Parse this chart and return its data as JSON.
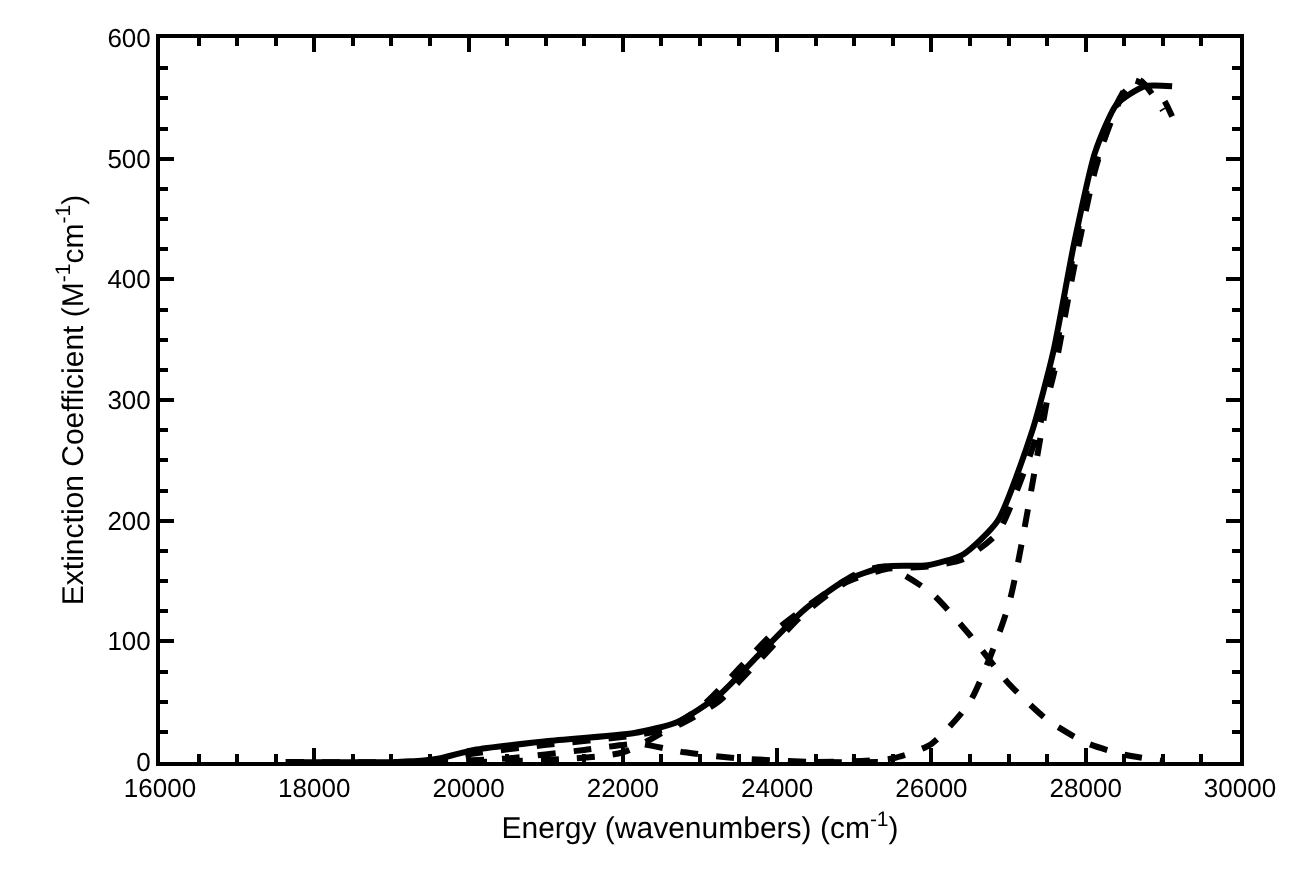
{
  "chart_data": {
    "type": "line",
    "xlabel": "Energy (wavenumbers) (cm$^{-1}$)",
    "ylabel": "Extinction Coefficient (M$^{-1}$cm$^{-1}$)",
    "xlim": [
      16000,
      30000
    ],
    "xticks": [
      16000,
      18000,
      20000,
      22000,
      24000,
      26000,
      28000,
      30000
    ],
    "ylim": [
      0,
      600
    ],
    "yticks": [
      0,
      100,
      200,
      300,
      400,
      500,
      600
    ],
    "grid": false,
    "marker": "none",
    "series": [
      {
        "color": "#000000",
        "line_style": "solid",
        "x": [
          17630,
          19080,
          19620,
          20070,
          20980,
          22150,
          22700,
          23240,
          23780,
          24330,
          24870,
          25410,
          25950,
          26410,
          26860,
          27310,
          27580,
          27850,
          28120,
          28400,
          28760,
          29120
        ],
        "values": [
          0,
          0,
          3,
          10,
          17,
          24,
          33,
          55,
          90,
          125,
          150,
          162,
          163,
          172,
          200,
          275,
          340,
          430,
          505,
          545,
          560,
          560
        ]
      },
      {
        "color": "#000000",
        "line_style": "dashed",
        "x": [
          17630,
          19080,
          19620,
          20070,
          20980,
          22150,
          22700,
          23240,
          23780,
          24330,
          24870,
          25410,
          25950,
          26410,
          26860,
          27310,
          27580,
          27850,
          28120,
          28400,
          28600,
          28800,
          29000,
          29120
        ],
        "values": [
          0,
          0,
          2,
          7,
          14,
          22,
          30,
          50,
          85,
          122,
          148,
          160,
          162,
          168,
          190,
          260,
          320,
          410,
          490,
          545,
          565,
          560,
          550,
          535
        ]
      },
      {
        "color": "#000000",
        "line_style": "dashed",
        "x": [
          19500,
          20500,
          21500,
          22200,
          22800,
          23500,
          24500,
          25500
        ],
        "values": [
          0,
          3,
          10,
          15,
          8,
          3,
          0,
          0
        ]
      },
      {
        "color": "#000000",
        "line_style": "dashed",
        "x": [
          20000,
          22000,
          23000,
          24000,
          25000,
          25400,
          26000,
          26500,
          27000,
          27500,
          28000,
          28500,
          29000
        ],
        "values": [
          0,
          8,
          45,
          110,
          155,
          162,
          140,
          105,
          65,
          35,
          16,
          6,
          1
        ]
      },
      {
        "color": "#000000",
        "line_style": "dashed",
        "x": [
          24500,
          25500,
          26000,
          26500,
          27000,
          27500,
          28000,
          28500,
          28700,
          29000
        ],
        "values": [
          0,
          3,
          15,
          50,
          130,
          300,
          470,
          555,
          565,
          540
        ]
      }
    ]
  }
}
